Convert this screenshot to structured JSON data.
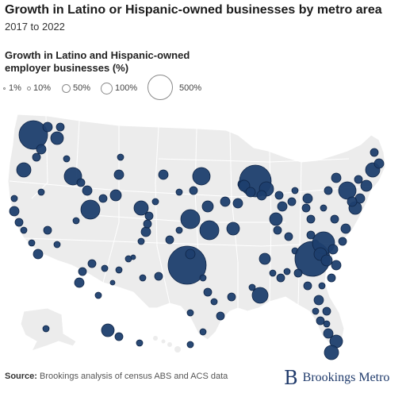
{
  "title": "Growth in Latino or Hispanic-owned businesses by metro area",
  "subtitle": "2017 to 2022",
  "legend": {
    "title": "Growth in Latino and Hispanic-owned employer businesses (%)",
    "items": [
      {
        "label": "1%",
        "value": 1
      },
      {
        "label": "10%",
        "value": 10
      },
      {
        "label": "50%",
        "value": 50
      },
      {
        "label": "100%",
        "value": 100
      },
      {
        "label": "500%",
        "value": 500
      }
    ]
  },
  "source": {
    "label": "Source:",
    "text": "Brookings analysis of census ABS and ACS data"
  },
  "brand": {
    "mark": "B",
    "name": "Brookings Metro"
  },
  "colors": {
    "bubble_fill": "#1e3f6e",
    "bubble_stroke": "#0f2547",
    "land": "#ececec",
    "border": "#ffffff"
  }
}
